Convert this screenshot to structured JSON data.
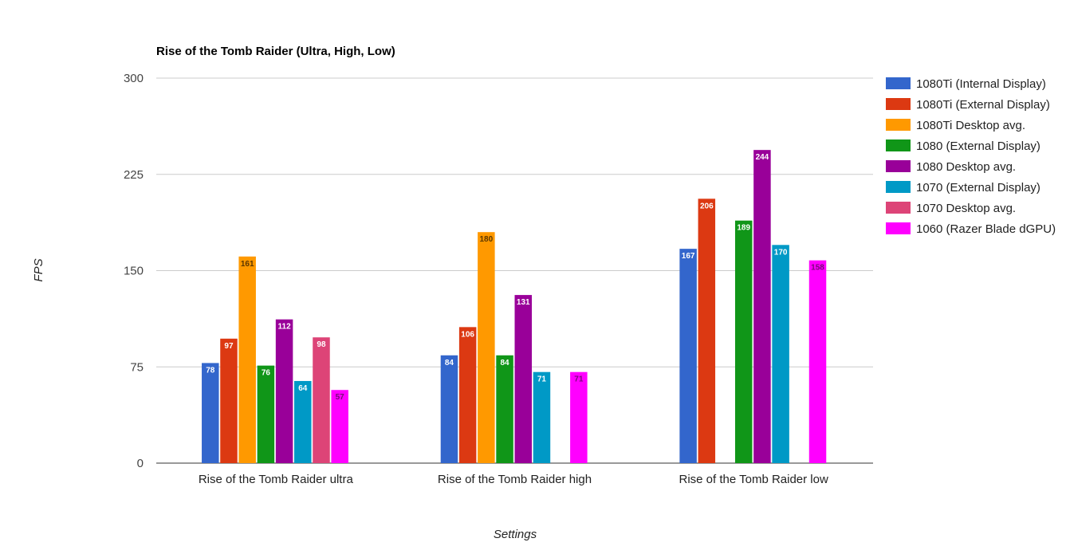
{
  "chart_data": {
    "type": "bar",
    "title": "Rise of the Tomb Raider (Ultra, High, Low)",
    "xlabel": "Settings",
    "ylabel": "FPS",
    "ylim": [
      0,
      300
    ],
    "yticks": [
      "0",
      "75",
      "150",
      "225",
      "300"
    ],
    "ytick_values": [
      0,
      75,
      150,
      225,
      300
    ],
    "grid": true,
    "legend_position": "right",
    "categories": [
      "Rise of the Tomb Raider ultra",
      "Rise of the Tomb Raider high",
      "Rise of the Tomb Raider low"
    ],
    "series": [
      {
        "name": "1080Ti (Internal Display)",
        "color": "#3366cc",
        "label_color": "#ffffff",
        "values": [
          78,
          84,
          167
        ]
      },
      {
        "name": "1080Ti (External Display)",
        "color": "#dc3912",
        "label_color": "#ffffff",
        "values": [
          97,
          106,
          206
        ]
      },
      {
        "name": "1080Ti Desktop avg.",
        "color": "#ff9900",
        "label_color": "#5a3600",
        "values": [
          161,
          180,
          null
        ]
      },
      {
        "name": "1080 (External Display)",
        "color": "#109618",
        "label_color": "#ffffff",
        "values": [
          76,
          84,
          189
        ]
      },
      {
        "name": "1080 Desktop avg.",
        "color": "#990099",
        "label_color": "#ffffff",
        "values": [
          112,
          131,
          244
        ]
      },
      {
        "name": "1070 (External Display)",
        "color": "#0099c6",
        "label_color": "#ffffff",
        "values": [
          64,
          71,
          170
        ]
      },
      {
        "name": "1070 Desktop avg.",
        "color": "#dd4477",
        "label_color": "#ffffff",
        "values": [
          98,
          null,
          null
        ]
      },
      {
        "name": "1060 (Razer Blade dGPU)",
        "color": "#ff00ff",
        "label_color": "#7a0a7a",
        "values": [
          57,
          71,
          158
        ]
      }
    ]
  }
}
